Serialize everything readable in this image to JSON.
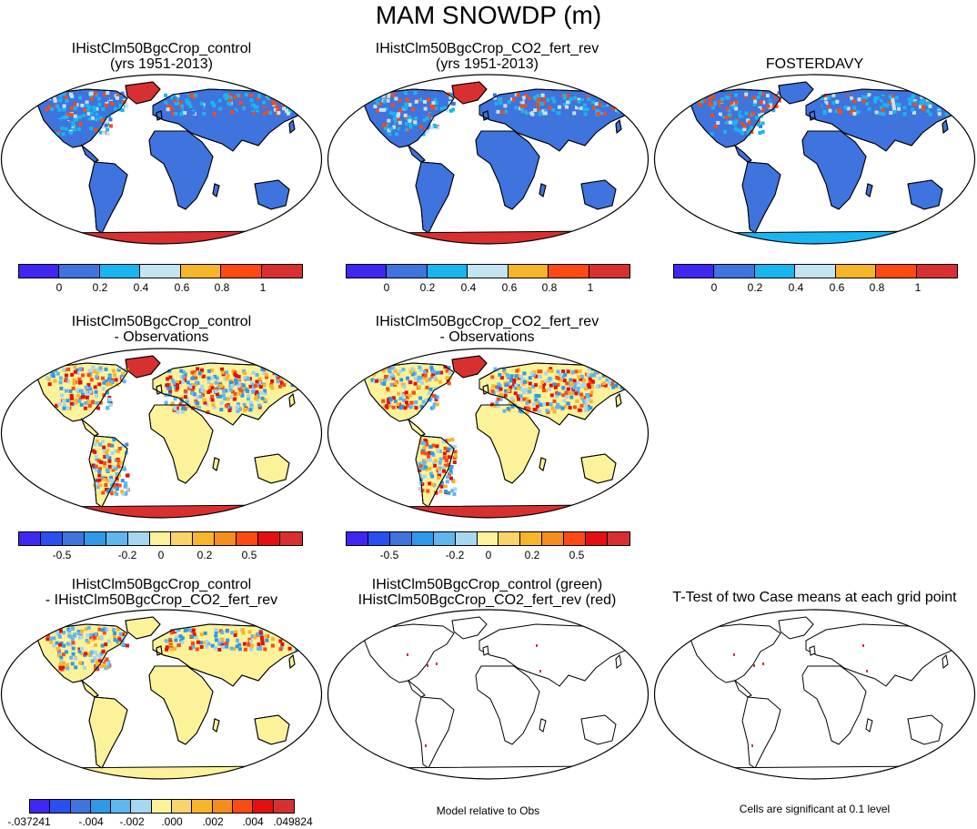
{
  "title": "MAM SNOWDP (m)",
  "colors": {
    "abs_scale": [
      "#3f27f2",
      "#3f73dd",
      "#1ab5f0",
      "#c4e4f0",
      "#f7b52b",
      "#fc4a12",
      "#d83030"
    ],
    "diff_scale": [
      "#3f27f2",
      "#2a4ff0",
      "#3f73dd",
      "#2f98e8",
      "#5fb7ee",
      "#a6d6f0",
      "#fbf29a",
      "#f8d46a",
      "#f7b52b",
      "#f58c1e",
      "#fc4a12",
      "#e50f0f",
      "#d83030"
    ],
    "land_abs": "#3f73dd",
    "land_diff": "#fbf29a",
    "antarctica_high": "#d83030",
    "antarctica_obs": "#1ab5f0",
    "grid_dot": "#d83030"
  },
  "panels": {
    "p1": {
      "title1": "IHistClm50BgcCrop_control",
      "title2": "(yrs 1951-2013)"
    },
    "p2": {
      "title1": "IHistClm50BgcCrop_CO2_fert_rev",
      "title2": "(yrs 1951-2013)"
    },
    "p3": {
      "title1": "FOSTERDAVY"
    },
    "p4": {
      "title1": "IHistClm50BgcCrop_control",
      "title2": "- Observations"
    },
    "p5": {
      "title1": "IHistClm50BgcCrop_CO2_fert_rev",
      "title2": "- Observations"
    },
    "p7": {
      "title1": "IHistClm50BgcCrop_control",
      "title2": "- IHistClm50BgcCrop_CO2_fert_rev"
    },
    "p8": {
      "title1": "IHistClm50BgcCrop_control (green)",
      "title2": "IHistClm50BgcCrop_CO2_fert_rev (red)"
    },
    "p9": {
      "title1": "T-Test of two Case means at each grid point"
    }
  },
  "colorbars": {
    "abs_ticks": [
      "0",
      "0.2",
      "0.4",
      "0.6",
      "0.8",
      "1"
    ],
    "diff_ticks": [
      "-0.5",
      "-0.2",
      "0",
      "0.2",
      "0.5"
    ],
    "ttest_ticks": [
      "-.037241",
      "-.004",
      "-.002",
      ".000",
      ".002",
      ".004",
      ".049824"
    ]
  },
  "notes": {
    "model_rel": "Model relative to Obs",
    "cells_sig": "Cells are significant at 0.1 level"
  }
}
